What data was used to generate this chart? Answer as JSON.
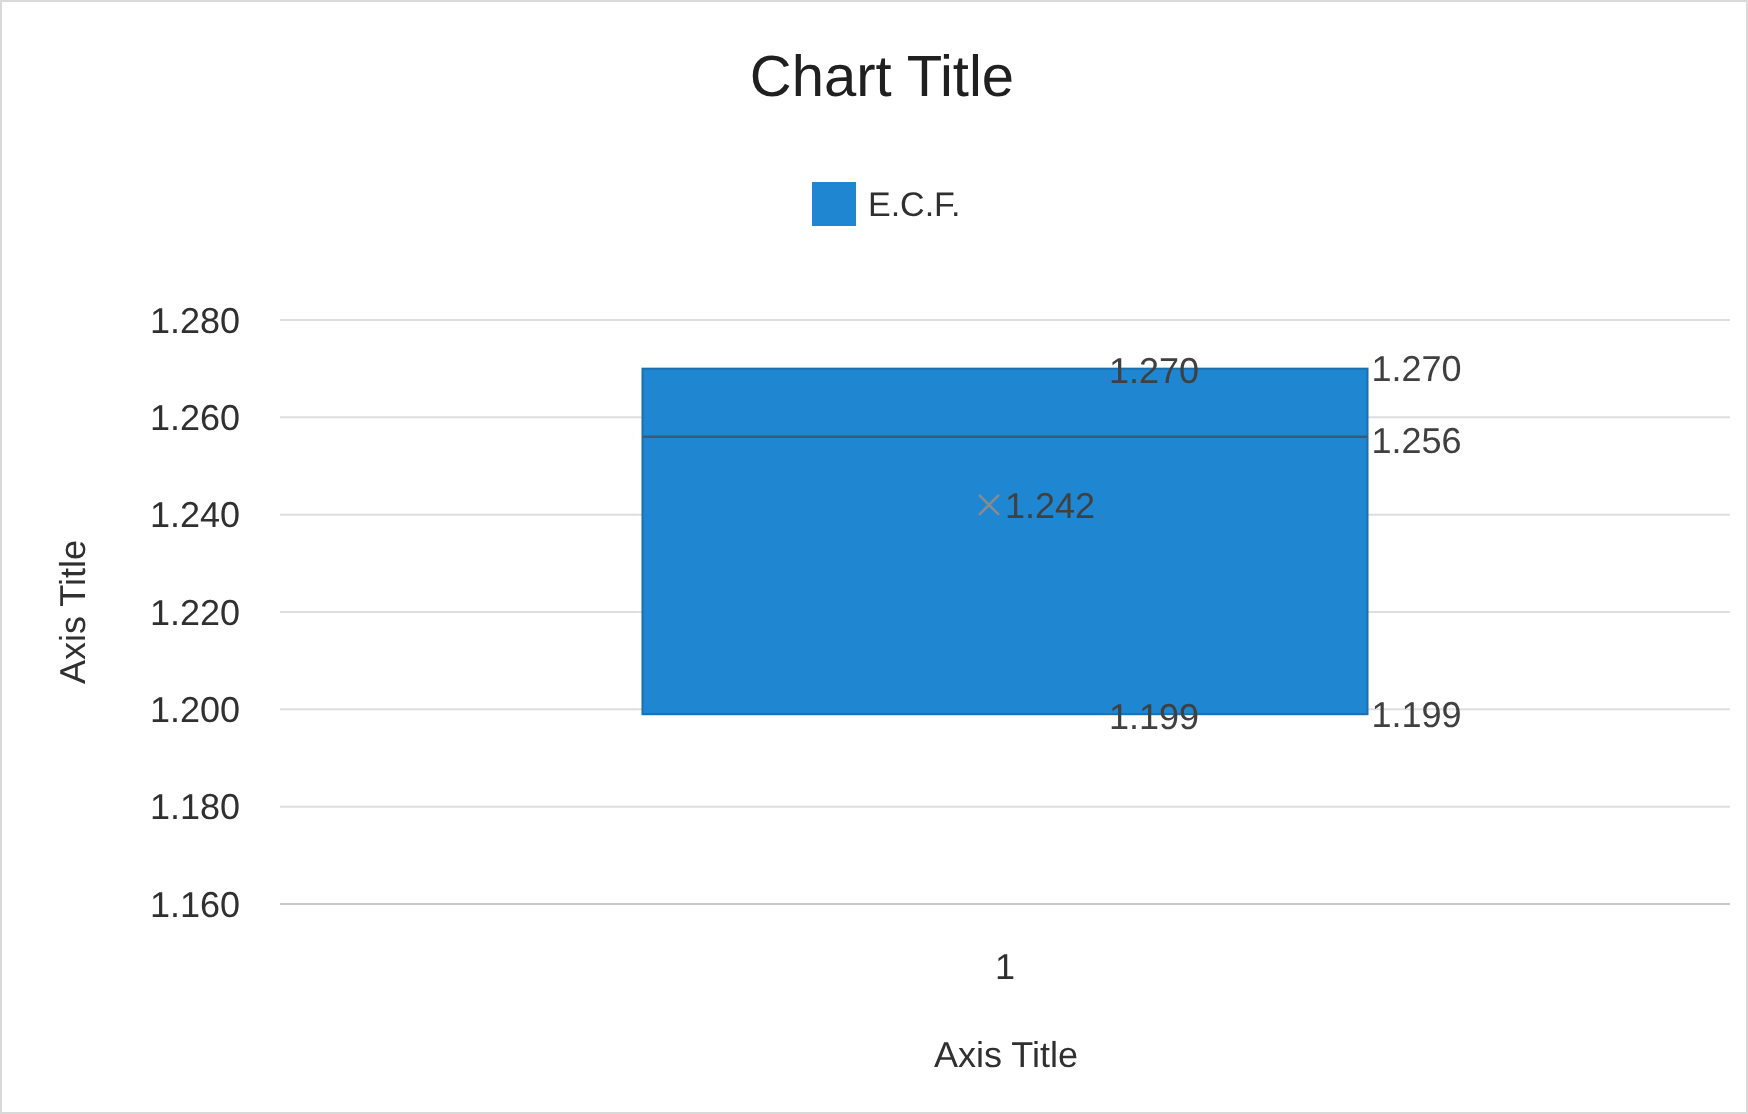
{
  "chart_data": {
    "type": "box",
    "title": "Chart Title",
    "xlabel": "Axis Title",
    "ylabel": "Axis Title",
    "categories": [
      "1"
    ],
    "series": [
      {
        "name": "E.C.F.",
        "color": "#1f86d2",
        "boxes": [
          {
            "low": 1.199,
            "q1": 1.199,
            "median": 1.256,
            "q3": 1.27,
            "high": 1.27,
            "mean": 1.242
          }
        ]
      }
    ],
    "ylim": [
      1.16,
      1.28
    ],
    "yticks": [
      {
        "value": 1.16,
        "label": "1.160"
      },
      {
        "value": 1.18,
        "label": "1.180"
      },
      {
        "value": 1.2,
        "label": "1.200"
      },
      {
        "value": 1.22,
        "label": "1.220"
      },
      {
        "value": 1.24,
        "label": "1.240"
      },
      {
        "value": 1.26,
        "label": "1.260"
      },
      {
        "value": 1.28,
        "label": "1.280"
      }
    ],
    "grid": "y",
    "legend": "top",
    "marker": "cross",
    "annotations": [
      "1.270",
      "1.270",
      "1.256",
      "1.242",
      "1.199",
      "1.199"
    ]
  }
}
